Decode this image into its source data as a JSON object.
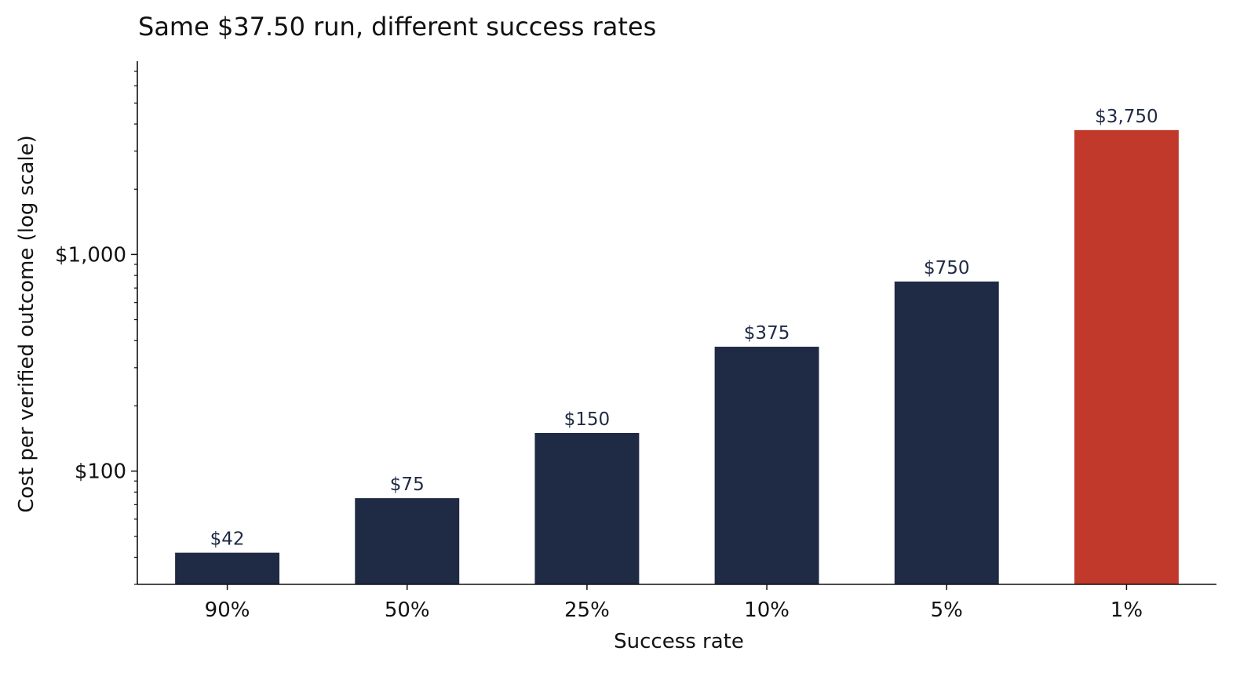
{
  "chart_data": {
    "type": "bar",
    "title": "Same $37.50 run, different success rates",
    "xlabel": "Success rate",
    "ylabel": "Cost per verified outcome (log scale)",
    "yscale": "log",
    "ylim": [
      30,
      7800
    ],
    "yticks": [
      {
        "value": 100,
        "label": "$100"
      },
      {
        "value": 1000,
        "label": "$1,000"
      }
    ],
    "categories": [
      "90%",
      "50%",
      "25%",
      "10%",
      "5%",
      "1%"
    ],
    "values": [
      42,
      75,
      150,
      375,
      750,
      3750
    ],
    "data_labels": [
      "$42",
      "$75",
      "$150",
      "$375",
      "$750",
      "$3,750"
    ],
    "highlight_index": 5,
    "colors": {
      "bar": "#1f2a44",
      "highlight": "#c0392b",
      "axis": "#111111"
    },
    "grid": false,
    "legend": "none"
  }
}
